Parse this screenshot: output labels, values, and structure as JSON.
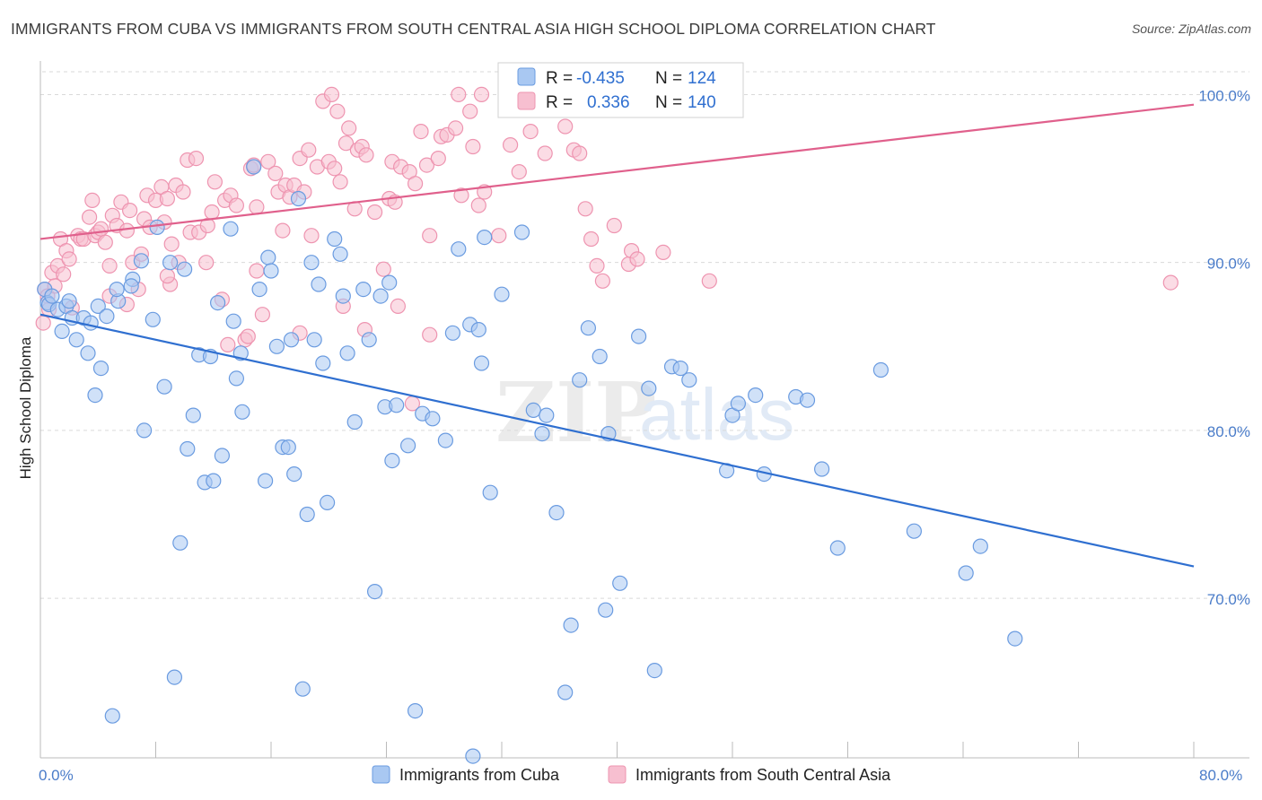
{
  "header": {
    "title": "IMMIGRANTS FROM CUBA VS IMMIGRANTS FROM SOUTH CENTRAL ASIA HIGH SCHOOL DIPLOMA CORRELATION CHART",
    "source": "Source: ZipAtlas.com"
  },
  "watermark": {
    "zip": "ZIP",
    "atlas": "atlas"
  },
  "stats": {
    "r_label": "R =",
    "n_label": "N =",
    "cuba": {
      "r": "-0.435",
      "n": "124"
    },
    "asia": {
      "r": "0.336",
      "n": "140"
    }
  },
  "colors": {
    "cuba_fill": "#a9c8f2",
    "cuba_stroke": "#6a9be0",
    "cuba_line": "#2f6fd0",
    "asia_fill": "#f7bfd0",
    "asia_stroke": "#ee94b0",
    "asia_line": "#e0608c",
    "grid": "#d9d9d9",
    "tick_label": "#4a7cc9"
  },
  "chart_data": {
    "type": "scatter",
    "ylabel": "High School Diploma",
    "xlim": [
      0,
      80
    ],
    "ylim": [
      60.5,
      102
    ],
    "x_tick_labels": [
      "0.0%",
      "80.0%"
    ],
    "y_ticks": [
      70,
      80,
      90,
      100
    ],
    "y_tick_labels": [
      "70.0%",
      "80.0%",
      "90.0%",
      "100.0%"
    ],
    "grid": true,
    "legend_position": "bottom",
    "series": [
      {
        "name": "Immigrants from Cuba",
        "trend": [
          [
            0,
            86.9
          ],
          [
            80,
            71.9
          ]
        ],
        "points": [
          [
            0.3,
            88.4
          ],
          [
            0.5,
            87.6
          ],
          [
            0.6,
            87.5
          ],
          [
            0.8,
            88.0
          ],
          [
            1.2,
            87.2
          ],
          [
            1.5,
            85.9
          ],
          [
            1.8,
            87.4
          ],
          [
            2.0,
            87.7
          ],
          [
            2.2,
            86.7
          ],
          [
            2.5,
            85.4
          ],
          [
            3.0,
            86.7
          ],
          [
            3.3,
            84.6
          ],
          [
            3.5,
            86.4
          ],
          [
            3.8,
            82.1
          ],
          [
            4.0,
            87.4
          ],
          [
            4.2,
            83.7
          ],
          [
            4.6,
            86.8
          ],
          [
            5.4,
            87.7
          ],
          [
            5.3,
            88.4
          ],
          [
            6.4,
            89.0
          ],
          [
            6.3,
            88.6
          ],
          [
            7.0,
            90.1
          ],
          [
            7.2,
            80.0
          ],
          [
            7.8,
            86.6
          ],
          [
            8.1,
            92.1
          ],
          [
            8.6,
            82.6
          ],
          [
            9.0,
            90.0
          ],
          [
            9.3,
            65.3
          ],
          [
            9.7,
            73.3
          ],
          [
            10.0,
            89.6
          ],
          [
            10.2,
            78.9
          ],
          [
            10.6,
            80.9
          ],
          [
            11.0,
            84.5
          ],
          [
            11.4,
            76.9
          ],
          [
            11.8,
            84.4
          ],
          [
            12.0,
            77.0
          ],
          [
            12.3,
            87.6
          ],
          [
            12.6,
            78.5
          ],
          [
            13.2,
            92.0
          ],
          [
            13.4,
            86.5
          ],
          [
            13.6,
            83.1
          ],
          [
            13.9,
            84.6
          ],
          [
            14.0,
            81.1
          ],
          [
            14.8,
            95.7
          ],
          [
            15.2,
            88.4
          ],
          [
            15.6,
            77.0
          ],
          [
            15.8,
            90.3
          ],
          [
            16.0,
            89.5
          ],
          [
            16.4,
            85.0
          ],
          [
            16.8,
            79.0
          ],
          [
            17.2,
            79.0
          ],
          [
            17.4,
            85.4
          ],
          [
            17.6,
            77.4
          ],
          [
            17.9,
            93.8
          ],
          [
            18.2,
            64.6
          ],
          [
            18.5,
            75.0
          ],
          [
            18.8,
            90.0
          ],
          [
            19.0,
            85.4
          ],
          [
            19.3,
            88.7
          ],
          [
            19.6,
            84.0
          ],
          [
            19.9,
            75.7
          ],
          [
            20.4,
            91.4
          ],
          [
            20.8,
            90.5
          ],
          [
            21.0,
            88.0
          ],
          [
            21.3,
            84.6
          ],
          [
            21.8,
            80.5
          ],
          [
            22.4,
            88.4
          ],
          [
            22.8,
            85.4
          ],
          [
            23.2,
            70.4
          ],
          [
            23.6,
            88.0
          ],
          [
            23.9,
            81.4
          ],
          [
            24.2,
            88.8
          ],
          [
            24.4,
            78.2
          ],
          [
            24.7,
            81.5
          ],
          [
            25.5,
            79.1
          ],
          [
            26.0,
            63.3
          ],
          [
            26.5,
            81.0
          ],
          [
            27.2,
            80.7
          ],
          [
            28.1,
            79.4
          ],
          [
            28.6,
            85.8
          ],
          [
            29.0,
            90.8
          ],
          [
            29.8,
            86.3
          ],
          [
            30.4,
            86.0
          ],
          [
            30.6,
            84.0
          ],
          [
            30.8,
            91.5
          ],
          [
            31.2,
            76.3
          ],
          [
            32.0,
            88.1
          ],
          [
            34.2,
            81.2
          ],
          [
            34.8,
            79.8
          ],
          [
            35.1,
            80.9
          ],
          [
            35.8,
            75.1
          ],
          [
            36.4,
            64.4
          ],
          [
            36.8,
            68.4
          ],
          [
            37.4,
            83.0
          ],
          [
            38.0,
            86.1
          ],
          [
            38.8,
            84.4
          ],
          [
            39.2,
            69.3
          ],
          [
            39.4,
            79.8
          ],
          [
            40.2,
            70.9
          ],
          [
            41.5,
            85.6
          ],
          [
            42.2,
            82.5
          ],
          [
            42.6,
            65.7
          ],
          [
            43.8,
            83.8
          ],
          [
            44.4,
            83.7
          ],
          [
            45.0,
            83.0
          ],
          [
            47.6,
            77.6
          ],
          [
            48.0,
            80.9
          ],
          [
            48.4,
            81.6
          ],
          [
            49.6,
            82.1
          ],
          [
            50.2,
            77.4
          ],
          [
            52.4,
            82.0
          ],
          [
            53.2,
            81.8
          ],
          [
            54.2,
            77.7
          ],
          [
            55.3,
            73.0
          ],
          [
            58.3,
            83.6
          ],
          [
            60.6,
            74.0
          ],
          [
            64.2,
            71.5
          ],
          [
            65.2,
            73.1
          ],
          [
            67.6,
            67.6
          ],
          [
            5.0,
            63.0
          ],
          [
            30.0,
            60.6
          ],
          [
            33.4,
            91.8
          ]
        ]
      },
      {
        "name": "Immigrants from South Central Asia",
        "trend": [
          [
            0,
            91.4
          ],
          [
            80,
            99.4
          ]
        ],
        "points": [
          [
            0.2,
            86.4
          ],
          [
            0.3,
            88.4
          ],
          [
            0.5,
            88.0
          ],
          [
            0.6,
            87.2
          ],
          [
            0.8,
            89.4
          ],
          [
            1.0,
            88.6
          ],
          [
            1.2,
            89.8
          ],
          [
            1.4,
            91.4
          ],
          [
            1.6,
            89.3
          ],
          [
            1.8,
            90.7
          ],
          [
            2.0,
            90.2
          ],
          [
            2.2,
            87.3
          ],
          [
            2.6,
            91.6
          ],
          [
            2.8,
            91.4
          ],
          [
            3.0,
            91.4
          ],
          [
            3.4,
            92.7
          ],
          [
            3.6,
            93.7
          ],
          [
            3.8,
            91.6
          ],
          [
            4.0,
            91.8
          ],
          [
            4.2,
            92.0
          ],
          [
            4.5,
            91.2
          ],
          [
            4.8,
            89.8
          ],
          [
            5.0,
            92.8
          ],
          [
            5.3,
            92.2
          ],
          [
            5.6,
            93.6
          ],
          [
            6.0,
            91.9
          ],
          [
            6.2,
            93.1
          ],
          [
            6.4,
            90.0
          ],
          [
            6.8,
            88.4
          ],
          [
            7.0,
            90.5
          ],
          [
            7.2,
            92.6
          ],
          [
            7.4,
            94.0
          ],
          [
            7.6,
            92.1
          ],
          [
            8.0,
            93.7
          ],
          [
            8.4,
            94.5
          ],
          [
            8.6,
            92.4
          ],
          [
            8.8,
            93.8
          ],
          [
            9.1,
            91.1
          ],
          [
            9.4,
            94.6
          ],
          [
            9.6,
            90.0
          ],
          [
            9.9,
            94.2
          ],
          [
            10.2,
            96.1
          ],
          [
            10.4,
            91.8
          ],
          [
            10.8,
            96.2
          ],
          [
            11.0,
            91.8
          ],
          [
            11.6,
            92.2
          ],
          [
            11.9,
            93.0
          ],
          [
            12.1,
            94.8
          ],
          [
            12.6,
            87.8
          ],
          [
            12.8,
            93.7
          ],
          [
            13.2,
            94.0
          ],
          [
            13.6,
            93.4
          ],
          [
            14.2,
            85.4
          ],
          [
            14.4,
            85.6
          ],
          [
            14.6,
            95.6
          ],
          [
            14.8,
            95.8
          ],
          [
            15.0,
            93.3
          ],
          [
            15.4,
            86.9
          ],
          [
            15.8,
            96.0
          ],
          [
            16.3,
            95.3
          ],
          [
            16.5,
            94.2
          ],
          [
            16.8,
            91.9
          ],
          [
            17.0,
            94.6
          ],
          [
            17.3,
            93.9
          ],
          [
            17.6,
            94.6
          ],
          [
            18.0,
            96.2
          ],
          [
            18.3,
            94.2
          ],
          [
            18.6,
            96.7
          ],
          [
            18.8,
            91.6
          ],
          [
            19.2,
            95.7
          ],
          [
            19.6,
            99.6
          ],
          [
            20.0,
            96.0
          ],
          [
            20.4,
            95.6
          ],
          [
            20.6,
            99.0
          ],
          [
            20.8,
            94.8
          ],
          [
            21.2,
            97.1
          ],
          [
            21.4,
            98.0
          ],
          [
            21.8,
            93.2
          ],
          [
            22.0,
            96.7
          ],
          [
            22.3,
            96.9
          ],
          [
            22.6,
            96.4
          ],
          [
            23.2,
            93.0
          ],
          [
            23.8,
            89.6
          ],
          [
            24.2,
            93.8
          ],
          [
            24.4,
            96.0
          ],
          [
            24.6,
            93.6
          ],
          [
            25.0,
            95.7
          ],
          [
            25.6,
            95.4
          ],
          [
            26.0,
            94.7
          ],
          [
            26.4,
            97.8
          ],
          [
            26.8,
            95.8
          ],
          [
            27.0,
            91.6
          ],
          [
            27.6,
            96.2
          ],
          [
            27.8,
            97.5
          ],
          [
            28.2,
            97.6
          ],
          [
            28.8,
            98.0
          ],
          [
            29.2,
            94.0
          ],
          [
            29.8,
            99.0
          ],
          [
            30.0,
            96.9
          ],
          [
            30.4,
            93.4
          ],
          [
            30.8,
            94.2
          ],
          [
            31.8,
            91.6
          ],
          [
            32.6,
            97.0
          ],
          [
            33.2,
            95.4
          ],
          [
            34.0,
            97.8
          ],
          [
            35.0,
            96.5
          ],
          [
            35.6,
            99.5
          ],
          [
            36.4,
            98.1
          ],
          [
            37.0,
            96.7
          ],
          [
            37.4,
            96.5
          ],
          [
            37.8,
            93.2
          ],
          [
            38.2,
            91.4
          ],
          [
            38.6,
            89.8
          ],
          [
            39.0,
            88.9
          ],
          [
            39.8,
            92.2
          ],
          [
            40.8,
            89.9
          ],
          [
            41.0,
            90.7
          ],
          [
            41.4,
            90.2
          ],
          [
            43.2,
            90.6
          ],
          [
            46.4,
            88.9
          ],
          [
            78.4,
            88.8
          ],
          [
            20.2,
            100.0
          ],
          [
            29.0,
            100.0
          ],
          [
            30.6,
            100.0
          ],
          [
            9.0,
            88.7
          ],
          [
            22.5,
            86.0
          ],
          [
            13.0,
            85.1
          ],
          [
            6.0,
            87.5
          ],
          [
            11.5,
            90.0
          ],
          [
            24.8,
            87.4
          ],
          [
            27.0,
            85.7
          ],
          [
            15.0,
            89.5
          ],
          [
            8.8,
            89.2
          ],
          [
            4.8,
            88.0
          ],
          [
            25.8,
            81.6
          ],
          [
            18.0,
            85.8
          ],
          [
            21.0,
            87.4
          ]
        ]
      }
    ]
  },
  "legend": {
    "cuba_label": "Immigrants from Cuba",
    "asia_label": "Immigrants from South Central Asia"
  }
}
